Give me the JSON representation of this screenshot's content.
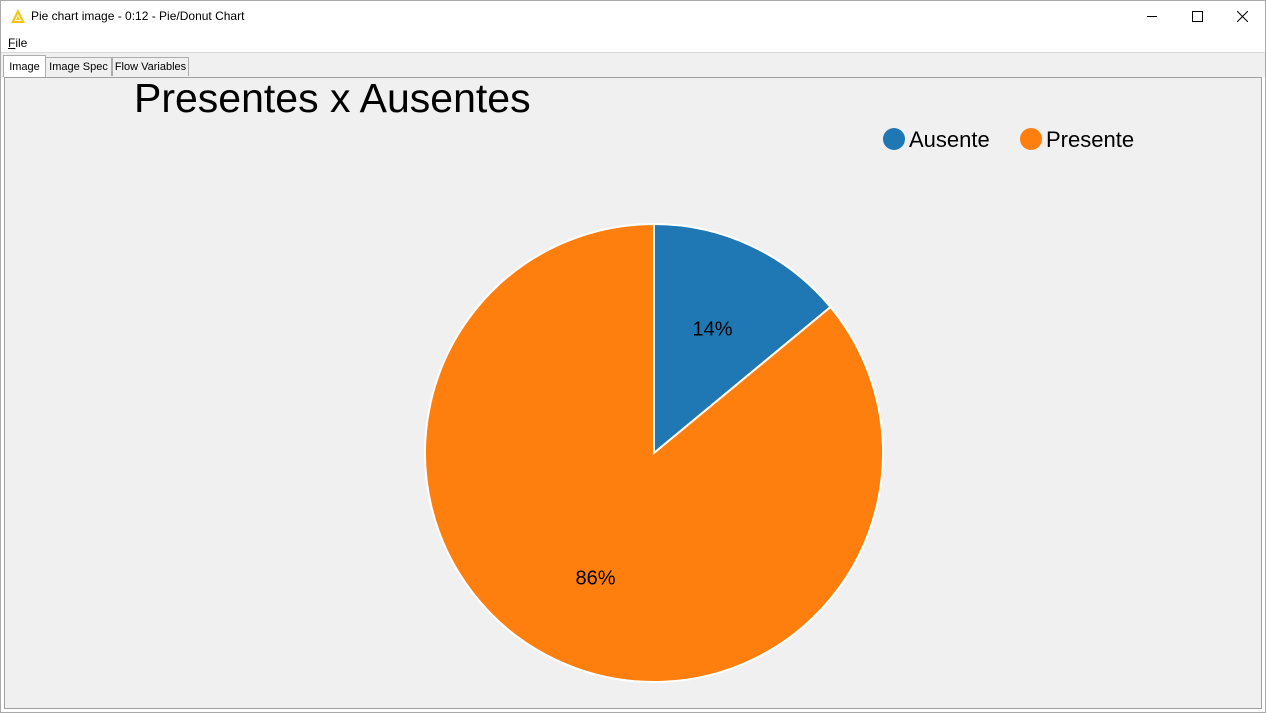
{
  "window": {
    "title": "Pie chart image - 0:12 - Pie/Donut Chart",
    "icon": "knime-triangle-icon"
  },
  "menu": {
    "file_prefix": "F",
    "file_rest": "ile"
  },
  "tabs": [
    {
      "label": "Image",
      "active": true
    },
    {
      "label": "Image Spec",
      "active": false
    },
    {
      "label": "Flow Variables",
      "active": false
    }
  ],
  "chart_data": {
    "type": "pie",
    "title": "Presentes x Ausentes",
    "legend_position": "top-right",
    "slices": [
      {
        "label": "Ausente",
        "value": 14,
        "display": "14%",
        "color": "#1f77b4"
      },
      {
        "label": "Presente",
        "value": 86,
        "display": "86%",
        "color": "#ff7f0e"
      }
    ]
  }
}
